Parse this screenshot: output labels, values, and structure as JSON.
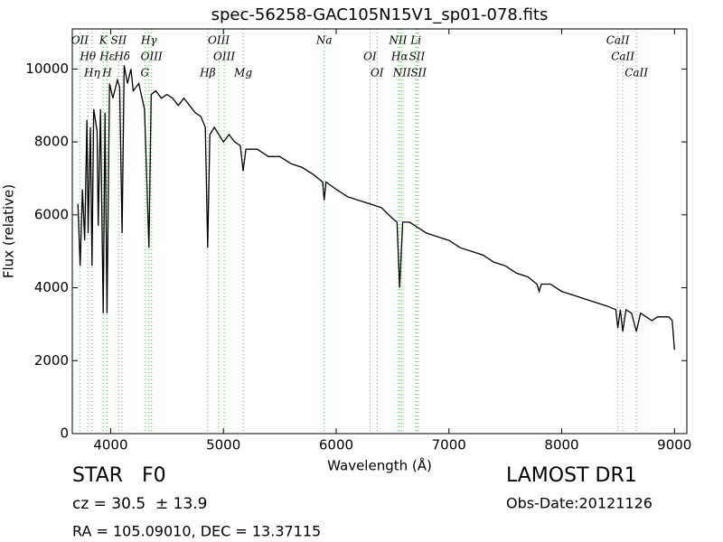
{
  "chart_data": {
    "type": "line",
    "title": "spec-56258-GAC105N15V1_sp01-078.fits",
    "x_label": "Wavelength (Å)",
    "y_label": "Flux (relative)",
    "color": "#000000",
    "line_color": "#66cc66",
    "xlim": [
      3660,
      9110
    ],
    "ylim": [
      0,
      11100
    ],
    "xticks": [
      4000,
      5000,
      6000,
      7000,
      8000,
      9000
    ],
    "yticks": [
      0,
      2000,
      4000,
      6000,
      8000,
      10000
    ],
    "x": [
      3710,
      3730,
      3750,
      3770,
      3790,
      3800,
      3820,
      3835,
      3850,
      3880,
      3890,
      3910,
      3934,
      3950,
      3968,
      3990,
      4020,
      4060,
      4080,
      4102,
      4120,
      4150,
      4180,
      4200,
      4250,
      4300,
      4340,
      4360,
      4400,
      4450,
      4500,
      4550,
      4600,
      4650,
      4700,
      4750,
      4800,
      4840,
      4861,
      4880,
      4920,
      4960,
      5000,
      5050,
      5100,
      5150,
      5175,
      5200,
      5300,
      5400,
      5500,
      5600,
      5700,
      5800,
      5880,
      5894,
      5910,
      6000,
      6100,
      6200,
      6300,
      6400,
      6500,
      6540,
      6563,
      6590,
      6650,
      6700,
      6800,
      6900,
      7000,
      7100,
      7200,
      7300,
      7400,
      7500,
      7600,
      7700,
      7780,
      7800,
      7820,
      7900,
      8000,
      8100,
      8200,
      8300,
      8400,
      8480,
      8498,
      8520,
      8542,
      8570,
      8620,
      8662,
      8700,
      8750,
      8800,
      8850,
      8900,
      8950,
      8980,
      9000
    ],
    "values": [
      6300,
      4600,
      6700,
      5300,
      8600,
      5500,
      8400,
      4600,
      8900,
      8300,
      5700,
      8900,
      3300,
      8800,
      3300,
      9600,
      9200,
      9700,
      9500,
      5500,
      10100,
      9600,
      10000,
      9400,
      9600,
      8900,
      5100,
      9300,
      9400,
      9200,
      9300,
      9200,
      9000,
      9200,
      9000,
      8800,
      8700,
      8400,
      5100,
      8200,
      8400,
      8200,
      8000,
      8200,
      8000,
      7900,
      7200,
      7800,
      7800,
      7600,
      7600,
      7400,
      7300,
      7100,
      6900,
      6400,
      6900,
      6700,
      6500,
      6400,
      6300,
      6200,
      5900,
      5800,
      4000,
      5800,
      5800,
      5700,
      5500,
      5400,
      5300,
      5100,
      5000,
      4900,
      4700,
      4600,
      4400,
      4300,
      4100,
      3900,
      4100,
      4100,
      3900,
      3800,
      3700,
      3600,
      3500,
      3400,
      2900,
      3400,
      2800,
      3400,
      3300,
      2800,
      3300,
      3200,
      3100,
      3200,
      3200,
      3200,
      3100,
      2300
    ],
    "spectral_lines": [
      {
        "label": "OII",
        "wavelength": 3727
      },
      {
        "label": "Hθ",
        "wavelength": 3798
      },
      {
        "label": "Hη",
        "wavelength": 3835
      },
      {
        "label": "K",
        "wavelength": 3934
      },
      {
        "label": "Hε",
        "wavelength": 3970
      },
      {
        "label": "H",
        "wavelength": 3968
      },
      {
        "label": "SII",
        "wavelength": 4072
      },
      {
        "label": "Hδ",
        "wavelength": 4102
      },
      {
        "label": "G",
        "wavelength": 4304
      },
      {
        "label": "Hγ",
        "wavelength": 4340
      },
      {
        "label": "OIII",
        "wavelength": 4363
      },
      {
        "label": "Hβ",
        "wavelength": 4861
      },
      {
        "label": "OIII",
        "wavelength": 4959
      },
      {
        "label": "OIII",
        "wavelength": 5007
      },
      {
        "label": "Mg",
        "wavelength": 5175
      },
      {
        "label": "Na",
        "wavelength": 5894
      },
      {
        "label": "OI",
        "wavelength": 6300
      },
      {
        "label": "OI",
        "wavelength": 6363
      },
      {
        "label": "NII",
        "wavelength": 6548
      },
      {
        "label": "Hα",
        "wavelength": 6563
      },
      {
        "label": "NII",
        "wavelength": 6583
      },
      {
        "label": "Li",
        "wavelength": 6707
      },
      {
        "label": "SII",
        "wavelength": 6717
      },
      {
        "label": "SII",
        "wavelength": 6731
      },
      {
        "label": "CaII",
        "wavelength": 8498
      },
      {
        "label": "CaII",
        "wavelength": 8542
      },
      {
        "label": "CaII",
        "wavelength": 8662
      }
    ],
    "class_text": "STAR   F0",
    "survey_text": "LAMOST DR1",
    "cz_text": "cz = 30.5  ± 13.9",
    "obs_date_text": "Obs-Date:20121126",
    "coord_text": "RA = 105.09010, DEC = 13.37115"
  }
}
